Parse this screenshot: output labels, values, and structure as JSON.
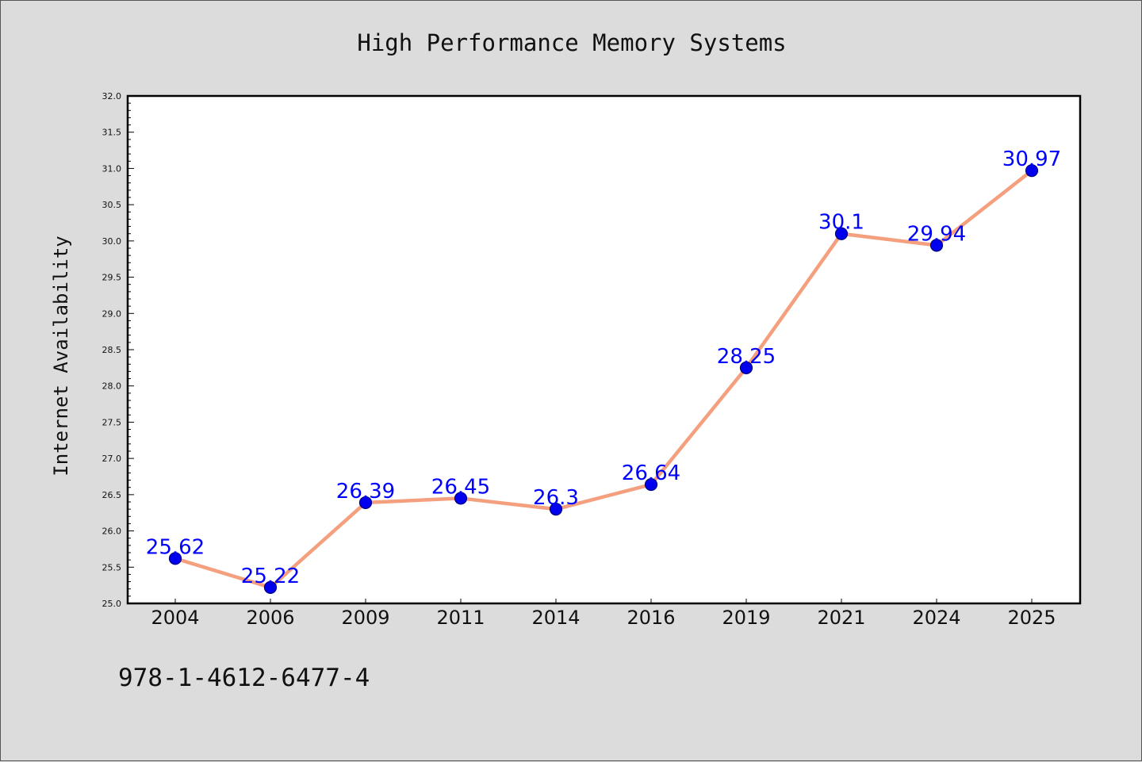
{
  "chart_data": {
    "type": "line",
    "title": "High Performance Memory Systems",
    "ylabel": "Internet Availability",
    "xlabel": "",
    "categories": [
      "2004",
      "2006",
      "2009",
      "2011",
      "2014",
      "2016",
      "2019",
      "2021",
      "2024",
      "2025"
    ],
    "series": [
      {
        "values": [
          25.62,
          25.22,
          26.39,
          26.45,
          26.3,
          26.64,
          28.25,
          30.1,
          29.94,
          30.97
        ],
        "labels": [
          "25.62",
          "25.22",
          "26.39",
          "26.45",
          "26.3",
          "26.64",
          "28.25",
          "30.1",
          "29.94",
          "30.97"
        ]
      }
    ],
    "ylim": [
      25.0,
      32.0
    ],
    "yticks": [
      "25.0",
      "25.5",
      "26.0",
      "26.5",
      "27.0",
      "27.5",
      "28.0",
      "28.5",
      "29.0",
      "29.5",
      "30.0",
      "30.5",
      "31.0",
      "31.5",
      "32.0"
    ],
    "grid": false,
    "colors": {
      "line": "#f4a07e",
      "marker": "#0000ee",
      "marker_edge": "#000080",
      "label": "#0000ff",
      "background": "#dcdcdc",
      "plot_background": "#ffffff"
    }
  },
  "annotation": {
    "isbn": "978-1-4612-6477-4"
  }
}
